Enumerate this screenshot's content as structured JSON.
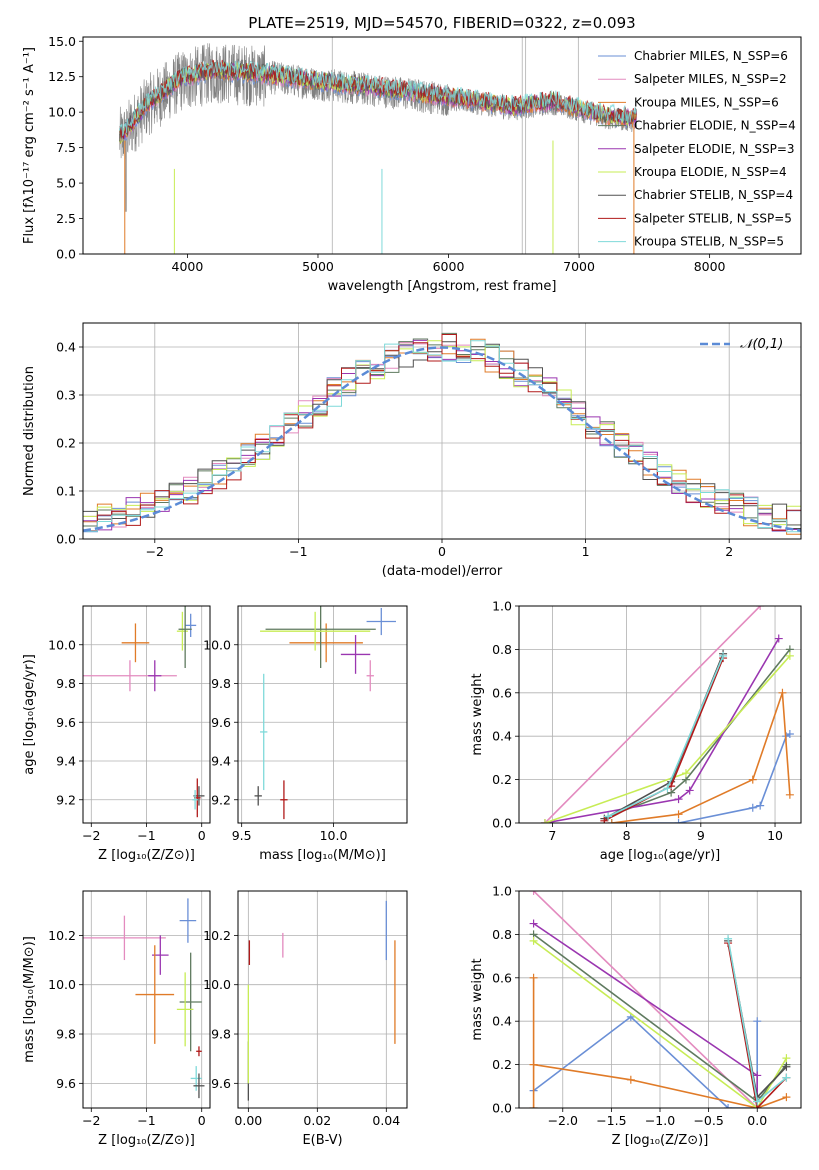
{
  "colors": {
    "chabrier_miles": "#6a8fd6",
    "salpeter_miles": "#e38bbf",
    "kroupa_miles": "#e07b28",
    "chabrier_elodie": "#5f7a5f",
    "salpeter_elodie": "#9a36b0",
    "kroupa_elodie": "#c7ec55",
    "chabrier_stelib": "#505050",
    "salpeter_stelib": "#b01a1a",
    "kroupa_stelib": "#7fd9d9",
    "data": "#808080",
    "normal": "#5b8bd6"
  },
  "chart_data": [
    {
      "id": "spectrum",
      "type": "line",
      "title": "PLATE=2519, MJD=54570, FIBERID=0322, z=0.093",
      "xlabel": "wavelength [Angstrom, rest frame]",
      "ylabel": "Flux [fλ10⁻¹⁷ erg cm⁻² s⁻¹ A⁻¹]",
      "xlim": [
        3200,
        8700
      ],
      "ylim": [
        0,
        15.3
      ],
      "xticks": [
        "4000",
        "5000",
        "6000",
        "7000",
        "8000"
      ],
      "yticks": [
        "0.0",
        "2.5",
        "5.0",
        "7.5",
        "10.0",
        "12.5",
        "15.0"
      ],
      "legend": "top-right",
      "series": [
        {
          "name": "Chabrier MILES, N_SSP=6",
          "color_key": "chabrier_miles"
        },
        {
          "name": "Salpeter MILES, N_SSP=2",
          "color_key": "salpeter_miles"
        },
        {
          "name": "Kroupa MILES, N_SSP=6",
          "color_key": "kroupa_miles"
        },
        {
          "name": "Chabrier ELODIE, N_SSP=4",
          "color_key": "chabrier_elodie"
        },
        {
          "name": "Salpeter ELODIE, N_SSP=3",
          "color_key": "salpeter_elodie"
        },
        {
          "name": "Kroupa ELODIE, N_SSP=4",
          "color_key": "kroupa_elodie"
        },
        {
          "name": "Chabrier STELIB, N_SSP=4",
          "color_key": "chabrier_stelib"
        },
        {
          "name": "Salpeter STELIB, N_SSP=5",
          "color_key": "salpeter_stelib"
        },
        {
          "name": "Kroupa STELIB, N_SSP=5",
          "color_key": "kroupa_stelib"
        }
      ],
      "model_shape": {
        "x": [
          3500,
          3700,
          3950,
          4200,
          4600,
          5000,
          5500,
          6000,
          6500,
          6800,
          7200,
          7400
        ],
        "y": [
          8.2,
          10.5,
          12.2,
          12.8,
          12.5,
          12.0,
          11.5,
          10.9,
          10.2,
          10.6,
          9.6,
          9.4
        ]
      }
    },
    {
      "id": "residuals",
      "type": "histogram",
      "xlabel": "(data-model)/error",
      "ylabel": "Normed distribution",
      "xlim": [
        -2.5,
        2.5
      ],
      "ylim": [
        0,
        0.45
      ],
      "xticks": [
        "−2",
        "−1",
        "0",
        "1",
        "2"
      ],
      "yticks": [
        "0.0",
        "0.1",
        "0.2",
        "0.3",
        "0.4"
      ],
      "grid": true,
      "legend": "top-right",
      "curve": {
        "name": "𝒩(0,1)",
        "mean": 0,
        "sigma": 1
      },
      "bin_width": 0.1
    },
    {
      "id": "age_vs_Z",
      "type": "errorbar",
      "xlabel": "Z [log₁₀(Z/Z⊙)]",
      "ylabel": "age  [log₁₀(age/yr)]",
      "xlim": [
        -2.15,
        0.15
      ],
      "ylim": [
        9.08,
        10.2
      ],
      "xticks": [
        "−2",
        "−1",
        "0"
      ],
      "yticks": [
        "9.2",
        "9.4",
        "9.6",
        "9.8",
        "10.0"
      ],
      "grid": true,
      "points": [
        {
          "s": "salpeter_miles",
          "x": -1.3,
          "xerr": 0.85,
          "y": 9.84,
          "yerr": 0.08
        },
        {
          "s": "kroupa_miles",
          "x": -1.2,
          "xerr": 0.25,
          "y": 10.01,
          "yerr": 0.1
        },
        {
          "s": "salpeter_elodie",
          "x": -0.85,
          "xerr": 0.12,
          "y": 9.84,
          "yerr": 0.08
        },
        {
          "s": "chabrier_miles",
          "x": -0.2,
          "xerr": 0.1,
          "y": 10.1,
          "yerr": 0.06
        },
        {
          "s": "kroupa_elodie",
          "x": -0.35,
          "xerr": 0.1,
          "y": 10.07,
          "yerr": 0.1
        },
        {
          "s": "chabrier_elodie",
          "x": -0.3,
          "xerr": 0.12,
          "y": 10.08,
          "yerr": 0.2
        },
        {
          "s": "chabrier_stelib",
          "x": -0.05,
          "xerr": 0.1,
          "y": 9.22,
          "yerr": 0.05
        },
        {
          "s": "salpeter_stelib",
          "x": -0.08,
          "xerr": 0.06,
          "y": 9.21,
          "yerr": 0.1
        },
        {
          "s": "kroupa_stelib",
          "x": -0.12,
          "xerr": 0.05,
          "y": 9.2,
          "yerr": 0.05
        }
      ]
    },
    {
      "id": "age_vs_mass",
      "type": "errorbar",
      "xlabel": "mass [log₁₀(M/M⊙)]",
      "ylabel": "",
      "xlim": [
        9.48,
        10.4
      ],
      "ylim": [
        9.08,
        10.2
      ],
      "xticks": [
        "9.5",
        "10.0"
      ],
      "yticks": [
        "9.2",
        "9.4",
        "9.6",
        "9.8",
        "10.0"
      ],
      "grid": true,
      "points": [
        {
          "s": "chabrier_miles",
          "x": 10.26,
          "xerr": 0.08,
          "y": 10.12,
          "yerr": 0.07
        },
        {
          "s": "salpeter_miles",
          "x": 10.2,
          "xerr": 0.02,
          "y": 9.84,
          "yerr": 0.08
        },
        {
          "s": "kroupa_miles",
          "x": 9.96,
          "xerr": 0.2,
          "y": 10.01,
          "yerr": 0.1
        },
        {
          "s": "chabrier_elodie",
          "x": 9.93,
          "xerr": 0.3,
          "y": 10.08,
          "yerr": 0.2
        },
        {
          "s": "salpeter_elodie",
          "x": 10.12,
          "xerr": 0.08,
          "y": 9.95,
          "yerr": 0.1
        },
        {
          "s": "kroupa_elodie",
          "x": 9.9,
          "xerr": 0.3,
          "y": 10.07,
          "yerr": 0.1
        },
        {
          "s": "chabrier_stelib",
          "x": 9.59,
          "xerr": 0.02,
          "y": 9.22,
          "yerr": 0.05
        },
        {
          "s": "salpeter_stelib",
          "x": 9.73,
          "xerr": 0.02,
          "y": 9.2,
          "yerr": 0.1
        },
        {
          "s": "kroupa_stelib",
          "x": 9.62,
          "xerr": 0.02,
          "y": 9.55,
          "yerr": 0.3
        }
      ]
    },
    {
      "id": "massweight_vs_age",
      "type": "line",
      "xlabel": "age  [log₁₀(age/yr)]",
      "ylabel": "mass weight",
      "xlim": [
        6.55,
        10.35
      ],
      "ylim": [
        0,
        1.0
      ],
      "xticks": [
        "7",
        "8",
        "9",
        "10"
      ],
      "yticks": [
        "0.0",
        "0.2",
        "0.4",
        "0.6",
        "0.8",
        "1.0"
      ],
      "grid": true,
      "series": [
        {
          "s": "chabrier_miles",
          "x": [
            7.8,
            8.7,
            9.7,
            9.8,
            10.15,
            10.2
          ],
          "y": [
            0.0,
            0.0,
            0.07,
            0.08,
            0.4,
            0.41
          ]
        },
        {
          "s": "salpeter_miles",
          "x": [
            6.9,
            9.8
          ],
          "y": [
            0.0,
            1.0
          ]
        },
        {
          "s": "kroupa_miles",
          "x": [
            7.8,
            8.7,
            9.7,
            10.1,
            10.2
          ],
          "y": [
            0.0,
            0.04,
            0.2,
            0.6,
            0.13
          ]
        },
        {
          "s": "chabrier_elodie",
          "x": [
            7.75,
            8.6,
            8.8,
            10.2
          ],
          "y": [
            0.03,
            0.14,
            0.2,
            0.8
          ]
        },
        {
          "s": "salpeter_elodie",
          "x": [
            6.9,
            8.7,
            8.85,
            10.05
          ],
          "y": [
            0.0,
            0.11,
            0.15,
            0.85
          ]
        },
        {
          "s": "kroupa_elodie",
          "x": [
            6.9,
            8.8,
            10.2
          ],
          "y": [
            0.0,
            0.23,
            0.77
          ]
        },
        {
          "s": "chabrier_stelib",
          "x": [
            7.7,
            8.6,
            9.3
          ],
          "y": [
            0.02,
            0.19,
            0.78
          ]
        },
        {
          "s": "salpeter_stelib",
          "x": [
            7.7,
            8.6,
            9.3
          ],
          "y": [
            0.01,
            0.17,
            0.76
          ]
        },
        {
          "s": "kroupa_stelib",
          "x": [
            7.75,
            8.55,
            9.3
          ],
          "y": [
            0.03,
            0.16,
            0.77
          ]
        }
      ]
    },
    {
      "id": "mass_vs_Z",
      "type": "errorbar",
      "xlabel": "Z [log₁₀(Z/Z⊙)]",
      "ylabel": "mass [log₁₀(M/M⊙)]",
      "xlim": [
        -2.15,
        0.15
      ],
      "ylim": [
        9.5,
        10.38
      ],
      "xticks": [
        "−2",
        "−1",
        "0"
      ],
      "yticks": [
        "9.6",
        "9.8",
        "10.0",
        "10.2"
      ],
      "grid": true,
      "points": [
        {
          "s": "salpeter_miles",
          "x": -1.4,
          "xerr": 0.75,
          "y": 10.19,
          "yerr": 0.09
        },
        {
          "s": "chabrier_miles",
          "x": -0.25,
          "xerr": 0.15,
          "y": 10.26,
          "yerr": 0.09
        },
        {
          "s": "salpeter_elodie",
          "x": -0.75,
          "xerr": 0.15,
          "y": 10.12,
          "yerr": 0.08
        },
        {
          "s": "kroupa_miles",
          "x": -0.85,
          "xerr": 0.35,
          "y": 9.96,
          "yerr": 0.2
        },
        {
          "s": "chabrier_elodie",
          "x": -0.2,
          "xerr": 0.2,
          "y": 9.93,
          "yerr": 0.2
        },
        {
          "s": "kroupa_elodie",
          "x": -0.3,
          "xerr": 0.15,
          "y": 9.9,
          "yerr": 0.15
        },
        {
          "s": "kroupa_stelib",
          "x": -0.1,
          "xerr": 0.1,
          "y": 9.62,
          "yerr": 0.05
        },
        {
          "s": "salpeter_stelib",
          "x": -0.05,
          "xerr": 0.05,
          "y": 9.73,
          "yerr": 0.02
        },
        {
          "s": "chabrier_stelib",
          "x": -0.05,
          "xerr": 0.1,
          "y": 9.59,
          "yerr": 0.05
        }
      ]
    },
    {
      "id": "mass_vs_ebv",
      "type": "errorbar",
      "xlabel": "E(B-V)",
      "ylabel": "",
      "xlim": [
        -0.003,
        0.046
      ],
      "ylim": [
        9.5,
        10.38
      ],
      "xticks": [
        "0.00",
        "0.02",
        "0.04"
      ],
      "yticks": [
        "9.6",
        "9.8",
        "10.0",
        "10.2"
      ],
      "grid": true,
      "points": [
        {
          "s": "chabrier_miles",
          "x": 0.04,
          "xerr": 0,
          "y": 10.22,
          "yerr": 0.12
        },
        {
          "s": "salpeter_miles",
          "x": 0.01,
          "xerr": 0,
          "y": 10.16,
          "yerr": 0.05
        },
        {
          "s": "kroupa_miles",
          "x": 0.0425,
          "xerr": 0,
          "y": 9.97,
          "yerr": 0.21
        },
        {
          "s": "salpeter_stelib",
          "x": 0.0003,
          "xerr": 0,
          "y": 10.13,
          "yerr": 0.05
        },
        {
          "s": "chabrier_stelib",
          "x": 0.0,
          "xerr": 0,
          "y": 9.65,
          "yerr": 0.12
        },
        {
          "s": "kroupa_elodie",
          "x": 0.0,
          "xerr": 0,
          "y": 9.8,
          "yerr": 0.2
        }
      ]
    },
    {
      "id": "massweight_vs_Z",
      "type": "line",
      "xlabel": "Z [log₁₀(Z/Z⊙)]",
      "ylabel": "mass weight",
      "xlim": [
        -2.45,
        0.45
      ],
      "ylim": [
        0,
        1.0
      ],
      "xticks": [
        "−2.0",
        "−1.5",
        "−1.0",
        "−0.5",
        "0.0"
      ],
      "yticks": [
        "0.0",
        "0.2",
        "0.4",
        "0.6",
        "0.8",
        "1.0"
      ],
      "grid": true,
      "series": [
        {
          "s": "chabrier_miles",
          "x": [
            -2.3,
            -1.3,
            -0.3,
            0.0,
            0.0
          ],
          "y": [
            0.08,
            0.42,
            0.0,
            0.0,
            0.4
          ]
        },
        {
          "s": "salpeter_miles",
          "x": [
            -2.3,
            0.0
          ],
          "y": [
            1.0,
            0.0
          ]
        },
        {
          "s": "kroupa_miles",
          "x": [
            -2.3,
            -2.3,
            -2.3,
            -1.3,
            0.0,
            0.3
          ],
          "y": [
            0.6,
            0.0,
            0.2,
            0.13,
            0.0,
            0.05
          ]
        },
        {
          "s": "chabrier_elodie",
          "x": [
            -2.3,
            0.0,
            0.3
          ],
          "y": [
            0.8,
            0.03,
            0.2
          ]
        },
        {
          "s": "salpeter_elodie",
          "x": [
            -2.3,
            0.0,
            0.0
          ],
          "y": [
            0.85,
            0.15,
            0.0
          ]
        },
        {
          "s": "kroupa_elodie",
          "x": [
            -2.3,
            0.0,
            0.3
          ],
          "y": [
            0.77,
            0.0,
            0.23
          ]
        },
        {
          "s": "chabrier_stelib",
          "x": [
            -0.3,
            0.0,
            0.3
          ],
          "y": [
            0.77,
            0.05,
            0.19
          ]
        },
        {
          "s": "salpeter_stelib",
          "x": [
            -0.3,
            0.0,
            0.3
          ],
          "y": [
            0.76,
            0.0,
            0.14
          ]
        },
        {
          "s": "kroupa_stelib",
          "x": [
            -0.3,
            0.0,
            0.3
          ],
          "y": [
            0.78,
            0.03,
            0.14
          ]
        }
      ]
    }
  ]
}
